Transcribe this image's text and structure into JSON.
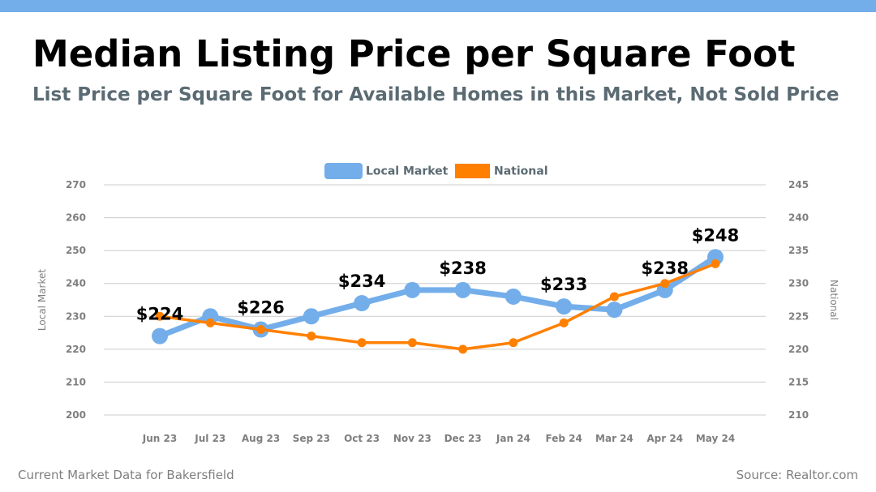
{
  "header": {
    "title": "Median Listing Price per Square Foot",
    "subtitle": "List Price per Square Foot for Available Homes in this Market, Not Sold Price"
  },
  "footer": {
    "left": "Current Market Data for Bakersfield",
    "right": "Source: Realtor.com"
  },
  "colors": {
    "top_bar": "#74aeea",
    "local": "#74aeea",
    "national": "#ff8000"
  },
  "chart_data": {
    "type": "line",
    "categories": [
      "Jun 23",
      "Jul 23",
      "Aug 23",
      "Sep 23",
      "Oct 23",
      "Nov 23",
      "Dec 23",
      "Jan 24",
      "Feb 24",
      "Mar 24",
      "Apr 24",
      "May 24"
    ],
    "series": [
      {
        "name": "Local Market",
        "axis": "left",
        "values": [
          224,
          230,
          226,
          230,
          234,
          238,
          238,
          236,
          233,
          232,
          238,
          248
        ]
      },
      {
        "name": "National",
        "axis": "right",
        "values": [
          225,
          224,
          223,
          222,
          221,
          221,
          220,
          221,
          224,
          228,
          230,
          233
        ]
      }
    ],
    "data_labels": [
      {
        "index": 0,
        "text": "$224"
      },
      {
        "index": 2,
        "text": "$226"
      },
      {
        "index": 4,
        "text": "$234"
      },
      {
        "index": 6,
        "text": "$238"
      },
      {
        "index": 8,
        "text": "$233"
      },
      {
        "index": 10,
        "text": "$238"
      },
      {
        "index": 11,
        "text": "$248"
      }
    ],
    "ylabel_left": "Local Market",
    "ylabel_right": "National",
    "ylim_left": [
      200,
      270
    ],
    "ylim_right": [
      210,
      245
    ],
    "yticks_left": [
      200,
      210,
      220,
      230,
      240,
      250,
      260,
      270
    ],
    "yticks_right": [
      210,
      215,
      220,
      225,
      230,
      235,
      240,
      245
    ],
    "grid": true,
    "legend_position": "top-center"
  }
}
